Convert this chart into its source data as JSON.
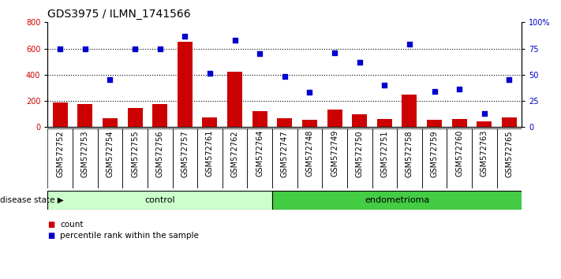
{
  "title": "GDS3975 / ILMN_1741566",
  "samples": [
    "GSM572752",
    "GSM572753",
    "GSM572754",
    "GSM572755",
    "GSM572756",
    "GSM572757",
    "GSM572761",
    "GSM572762",
    "GSM572764",
    "GSM572747",
    "GSM572748",
    "GSM572749",
    "GSM572750",
    "GSM572751",
    "GSM572758",
    "GSM572759",
    "GSM572760",
    "GSM572763",
    "GSM572765"
  ],
  "counts": [
    190,
    175,
    65,
    145,
    175,
    650,
    70,
    425,
    120,
    65,
    55,
    130,
    95,
    60,
    245,
    55,
    60,
    45,
    70
  ],
  "percentiles": [
    75,
    75,
    45,
    75,
    75,
    87,
    51,
    83,
    70,
    48,
    33,
    71,
    62,
    40,
    79,
    34,
    36,
    13,
    45
  ],
  "control_count": 9,
  "endometrioma_count": 10,
  "bar_color": "#cc0000",
  "dot_color": "#0000cc",
  "left_ylim": [
    0,
    800
  ],
  "right_ylim": [
    0,
    100
  ],
  "left_yticks": [
    0,
    200,
    400,
    600,
    800
  ],
  "right_yticks": [
    0,
    25,
    50,
    75,
    100
  ],
  "right_yticklabels": [
    "0",
    "25",
    "50",
    "75",
    "100%"
  ],
  "control_color": "#ccffcc",
  "endometrioma_color": "#44cc44",
  "disease_state_label": "disease state",
  "control_label": "control",
  "endometrioma_label": "endometrioma",
  "legend_count_label": "count",
  "legend_pct_label": "percentile rank within the sample",
  "xlabel_bg": "#cccccc",
  "dotted_grid_color": "#000000",
  "title_fontsize": 10,
  "tick_fontsize": 7,
  "bar_width": 0.6
}
